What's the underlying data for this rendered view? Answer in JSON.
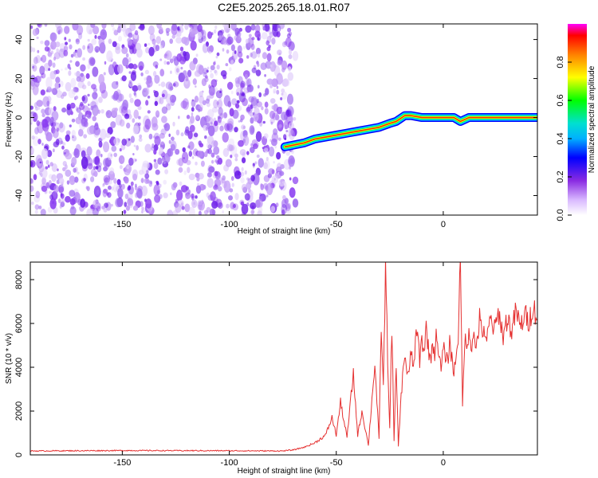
{
  "title": "C2E5.2025.265.18.01.R07",
  "chart_data": [
    {
      "type": "heatmap",
      "xlabel": "Height of straight line (km)",
      "ylabel": "Frequency (Hz)",
      "xlim": [
        -193,
        44
      ],
      "ylim": [
        -50,
        48
      ],
      "xticks": [
        -150,
        -100,
        -50,
        0
      ],
      "yticks": [
        -40,
        -20,
        0,
        20,
        40
      ],
      "noise_region_x": [
        -193,
        -72
      ],
      "signal_trace": {
        "x": [
          -74,
          -65,
          -60,
          -55,
          -50,
          -45,
          -40,
          -35,
          -30,
          -25,
          -22,
          -18,
          -15,
          -10,
          -5,
          0,
          5,
          8,
          12,
          20,
          30,
          44
        ],
        "frequency": [
          -15,
          -13,
          -11,
          -10,
          -9,
          -8,
          -7,
          -6,
          -5,
          -3,
          -2,
          1,
          1,
          0,
          0,
          0,
          0,
          -2,
          0,
          0,
          0,
          0
        ]
      },
      "colorbar": {
        "label": "Normalized spectral amplitude",
        "range": [
          0,
          1
        ],
        "ticks": [
          "0.0",
          "0.2",
          "0.4",
          "0.6",
          "0.8"
        ]
      }
    },
    {
      "type": "line",
      "xlabel": "Height of straight line (km)",
      "ylabel": "SNR (10 * v/v)",
      "xlim": [
        -193,
        44
      ],
      "ylim": [
        0,
        8800
      ],
      "xticks": [
        -150,
        -100,
        -50,
        0
      ],
      "yticks": [
        0,
        2000,
        4000,
        6000,
        8000
      ],
      "color": "#e53030",
      "series": [
        {
          "name": "SNR",
          "x": [
            -193,
            -150,
            -100,
            -75,
            -70,
            -65,
            -60,
            -55,
            -52,
            -50,
            -48,
            -45,
            -42,
            -40,
            -38,
            -35,
            -32,
            -30,
            -29,
            -28,
            -27,
            -26,
            -25,
            -24,
            -23,
            -22,
            -21,
            -20,
            -19,
            -18,
            -17,
            -16,
            -15,
            -14,
            -13,
            -12,
            -11,
            -10,
            -9,
            -8,
            -7,
            -6,
            -5,
            -4,
            -3,
            -2,
            -1,
            0,
            1,
            2,
            3,
            4,
            5,
            6,
            7,
            8,
            9,
            10,
            11,
            12,
            13,
            14,
            15,
            16,
            17,
            18,
            19,
            20,
            22,
            24,
            26,
            28,
            30,
            32,
            34,
            36,
            38,
            40,
            42,
            44
          ],
          "values": [
            180,
            200,
            190,
            180,
            230,
            350,
            550,
            900,
            1700,
            900,
            2400,
            800,
            3700,
            900,
            2000,
            450,
            4200,
            700,
            6000,
            3000,
            8600,
            4500,
            1200,
            5900,
            600,
            4100,
            400,
            2200,
            3500,
            4700,
            3800,
            3600,
            4800,
            3900,
            5100,
            5600,
            4300,
            5300,
            4700,
            5800,
            5000,
            4200,
            5200,
            4600,
            5700,
            4400,
            3900,
            4800,
            4600,
            4200,
            5200,
            4400,
            3700,
            4600,
            5500,
            8700,
            2300,
            5400,
            4700,
            5900,
            4900,
            5600,
            4800,
            5400,
            6200,
            5500,
            5900,
            5000,
            6200,
            5700,
            6500,
            5400,
            6300,
            5600,
            6600,
            5800,
            6400,
            6100,
            6800,
            6200
          ]
        }
      ]
    }
  ]
}
